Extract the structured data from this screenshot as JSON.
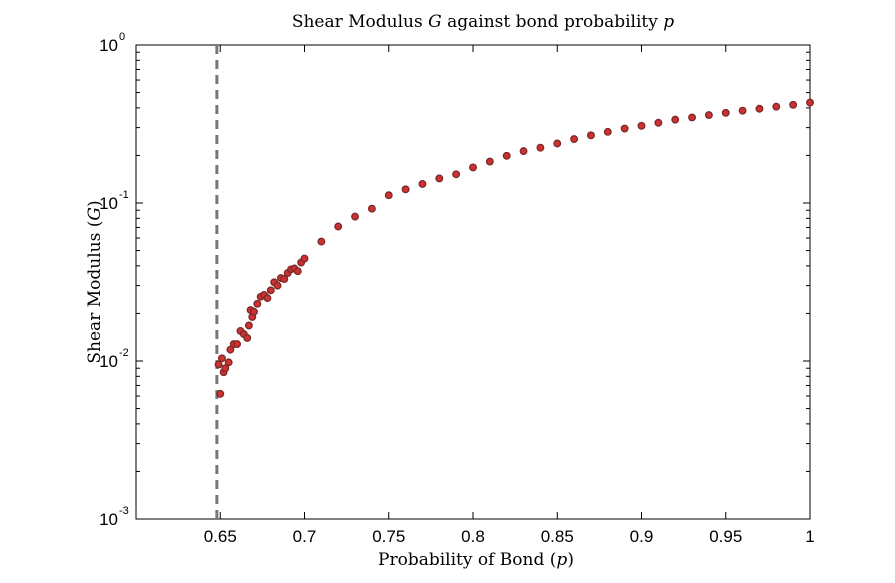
{
  "chart_data": {
    "type": "scatter",
    "title": "Shear Modulus G against bond probability p",
    "xlabel": "Probability of Bond (p)",
    "ylabel": "Shear Modulus (G)",
    "xlim": [
      0.6,
      1.0
    ],
    "ylim": [
      0.001,
      1
    ],
    "yscale": "log",
    "grid": false,
    "x_ticks": [
      "0.65",
      "0.7",
      "0.75",
      "0.8",
      "0.85",
      "0.9",
      "0.95",
      "1"
    ],
    "y_ticks": [
      {
        "base": "10",
        "exp": "0"
      },
      {
        "base": "10",
        "exp": "-1"
      },
      {
        "base": "10",
        "exp": "-2"
      },
      {
        "base": "10",
        "exp": "-3"
      }
    ],
    "threshold_line": {
      "x": 0.648,
      "style": "dashed",
      "color": "#777777"
    },
    "marker_color": "#d03030",
    "marker_edge": "#7a2a2a",
    "series": [
      {
        "x": [
          0.649,
          0.65,
          0.651,
          0.652,
          0.653,
          0.655,
          0.656,
          0.658,
          0.66,
          0.662,
          0.664,
          0.666,
          0.667,
          0.668,
          0.669,
          0.67,
          0.672,
          0.674,
          0.676,
          0.678,
          0.68,
          0.682,
          0.684,
          0.686,
          0.688,
          0.69,
          0.692,
          0.694,
          0.696,
          0.698,
          0.7,
          0.71,
          0.72,
          0.73,
          0.74,
          0.75,
          0.76,
          0.77,
          0.78,
          0.79,
          0.8,
          0.81,
          0.82,
          0.83,
          0.84,
          0.85,
          0.86,
          0.87,
          0.88,
          0.89,
          0.9,
          0.91,
          0.92,
          0.93,
          0.94,
          0.95,
          0.96,
          0.97,
          0.98,
          0.99,
          1.0
        ],
        "y": [
          0.0095,
          0.0062,
          0.0104,
          0.0085,
          0.009,
          0.0098,
          0.0118,
          0.0128,
          0.0128,
          0.0155,
          0.0148,
          0.014,
          0.0168,
          0.021,
          0.019,
          0.0205,
          0.023,
          0.0255,
          0.0262,
          0.025,
          0.028,
          0.0315,
          0.03,
          0.0335,
          0.033,
          0.036,
          0.038,
          0.0385,
          0.037,
          0.042,
          0.0445,
          0.057,
          0.071,
          0.082,
          0.092,
          0.112,
          0.122,
          0.132,
          0.143,
          0.152,
          0.168,
          0.183,
          0.199,
          0.213,
          0.224,
          0.238,
          0.254,
          0.268,
          0.282,
          0.296,
          0.308,
          0.322,
          0.337,
          0.348,
          0.36,
          0.372,
          0.384,
          0.395,
          0.407,
          0.418,
          0.432
        ]
      }
    ]
  }
}
